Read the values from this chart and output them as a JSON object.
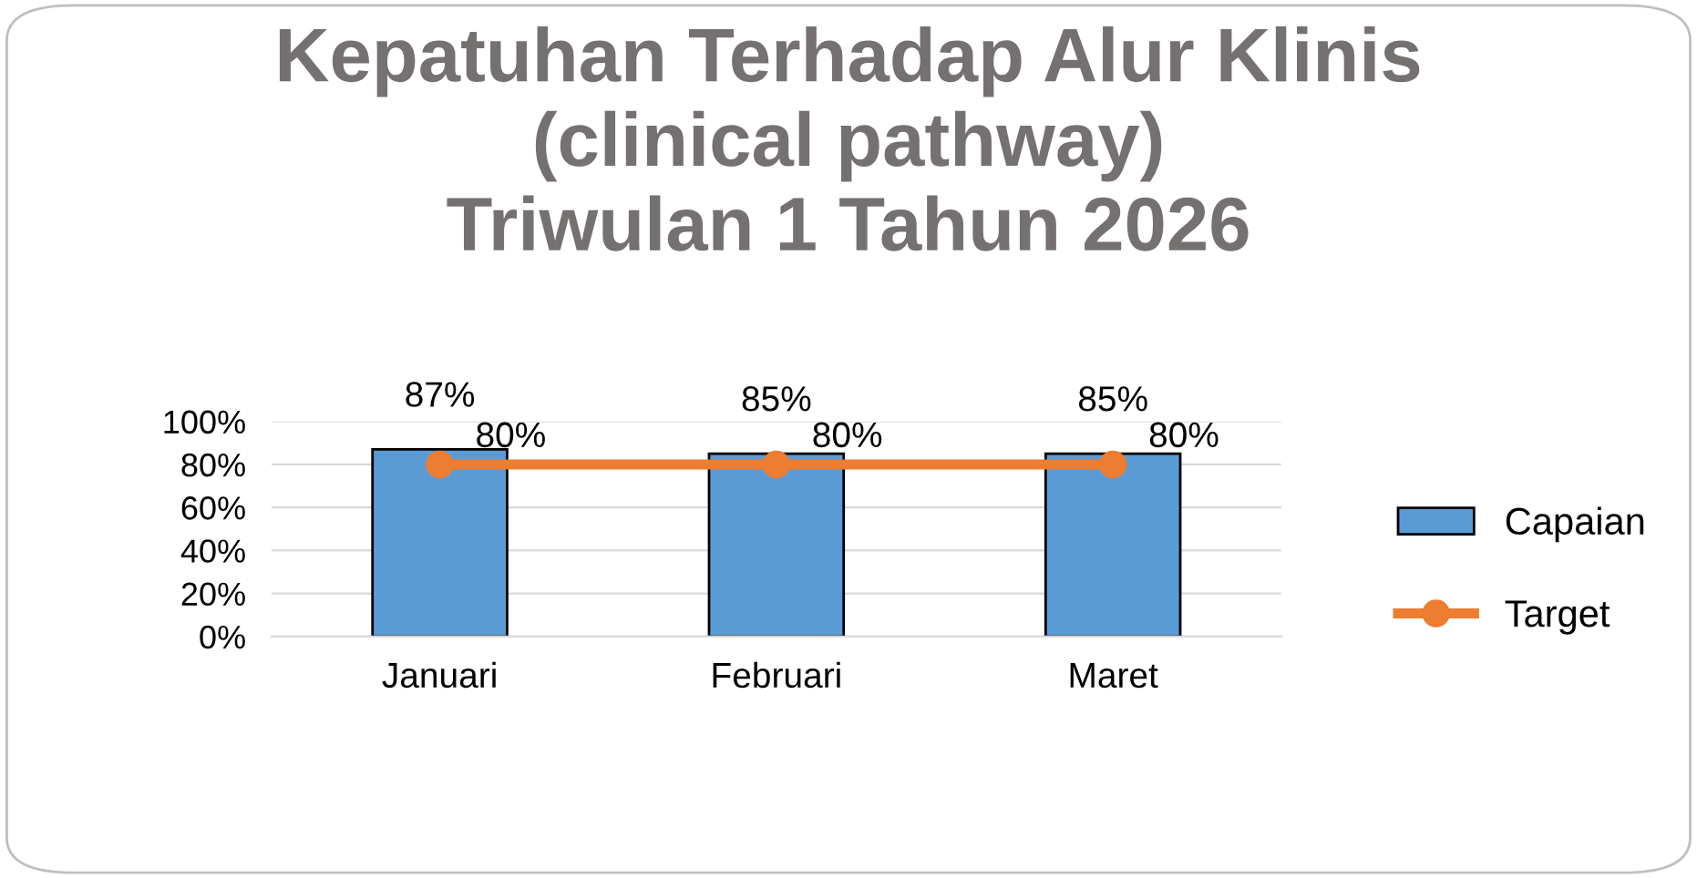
{
  "chart_data": {
    "type": "bar",
    "title": "Kepatuhan Terhadap Alur Klinis\n(clinical pathway)\nTriwulan 1 Tahun 2026",
    "categories": [
      "Januari",
      "Februari",
      "Maret"
    ],
    "series": [
      {
        "name": "Capaian",
        "color": "#5b9bd5",
        "values": [
          87,
          85,
          85
        ],
        "value_labels": [
          "87%",
          "85%",
          "85%"
        ]
      },
      {
        "name": "Target",
        "type": "line",
        "color": "#ed7d31",
        "values": [
          80,
          80,
          80
        ],
        "value_labels": [
          "80%",
          "80%",
          "80%"
        ],
        "marker": "circle"
      }
    ],
    "ylim": [
      0,
      100
    ],
    "yticks": [
      {
        "value": 0,
        "label": "0%"
      },
      {
        "value": 20,
        "label": "20%"
      },
      {
        "value": 40,
        "label": "40%"
      },
      {
        "value": 60,
        "label": "60%"
      },
      {
        "value": 80,
        "label": "80%"
      },
      {
        "value": 100,
        "label": "100%"
      }
    ],
    "grid": "y",
    "legend": "right"
  }
}
